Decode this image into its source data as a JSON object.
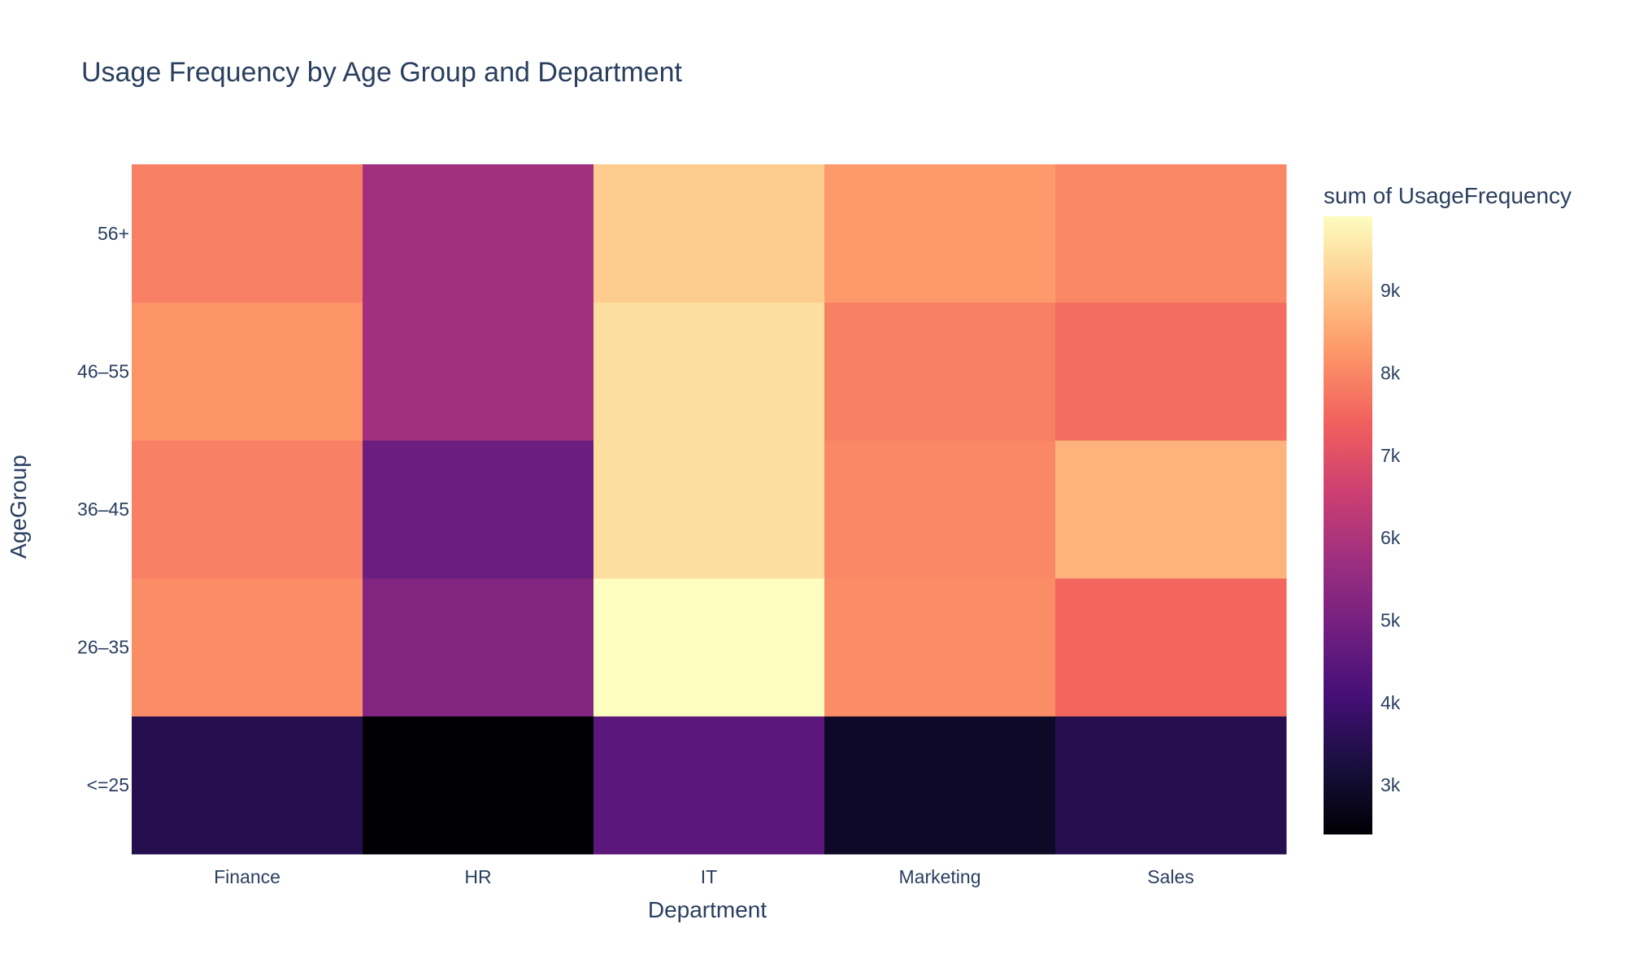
{
  "chart_data": {
    "type": "heatmap",
    "title": "Usage Frequency by Age Group and Department",
    "xlabel": "Department",
    "ylabel": "AgeGroup",
    "x_categories": [
      "Finance",
      "HR",
      "IT",
      "Marketing",
      "Sales"
    ],
    "y_categories": [
      "<=25",
      "26–35",
      "36–45",
      "46–55",
      "56+"
    ],
    "values": [
      [
        3500,
        2400,
        4500,
        2900,
        3500
      ],
      [
        8100,
        5200,
        9900,
        8100,
        7500
      ],
      [
        7900,
        4800,
        9400,
        8000,
        8700
      ],
      [
        8200,
        5800,
        9400,
        7900,
        7600
      ],
      [
        7900,
        5800,
        9100,
        8300,
        8000
      ]
    ],
    "colorbar": {
      "title": "sum of UsageFrequency",
      "min": 2400,
      "max": 9900,
      "ticks": [
        3000,
        4000,
        5000,
        6000,
        7000,
        8000,
        9000
      ],
      "tick_labels": [
        "3k",
        "4k",
        "5k",
        "6k",
        "7k",
        "8k",
        "9k"
      ],
      "colorscale": [
        "#000004",
        "#180f3d",
        "#440f76",
        "#721f81",
        "#9e2f7f",
        "#cd4071",
        "#f1605d",
        "#fd9668",
        "#feca8d",
        "#fcfdbf"
      ]
    },
    "grid": false
  }
}
